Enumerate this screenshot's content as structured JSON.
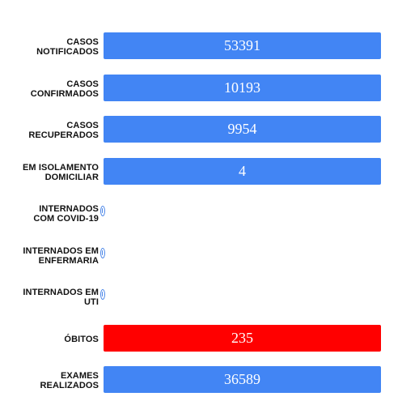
{
  "colors": {
    "default_bar": "#4285f4",
    "highlight_bar": "#ff0000"
  },
  "chart_data": {
    "type": "bar",
    "orientation": "horizontal",
    "categories": [
      "CASOS NOTIFICADOS",
      "CASOS CONFIRMADOS",
      "CASOS RECUPERADOS",
      "EM ISOLAMENTO DOMICILIAR",
      "INTERNADOS COM COVID-19",
      "INTERNADOS EM ENFERMARIA",
      "INTERNADOS EM UTI",
      "ÓBITOS",
      "EXAMES REALIZADOS"
    ],
    "values": [
      53391,
      10193,
      9954,
      4,
      0,
      0,
      0,
      235,
      36589
    ],
    "value_labels": [
      "53391",
      "10193",
      "9954",
      "4",
      "0",
      "0",
      "0",
      "235",
      "36589"
    ],
    "bar_colors": [
      "#4285f4",
      "#4285f4",
      "#4285f4",
      "#4285f4",
      "#4285f4",
      "#4285f4",
      "#4285f4",
      "#ff0000",
      "#4285f4"
    ],
    "title": "",
    "xlabel": "",
    "ylabel": "",
    "grid": false,
    "legend": "none"
  }
}
